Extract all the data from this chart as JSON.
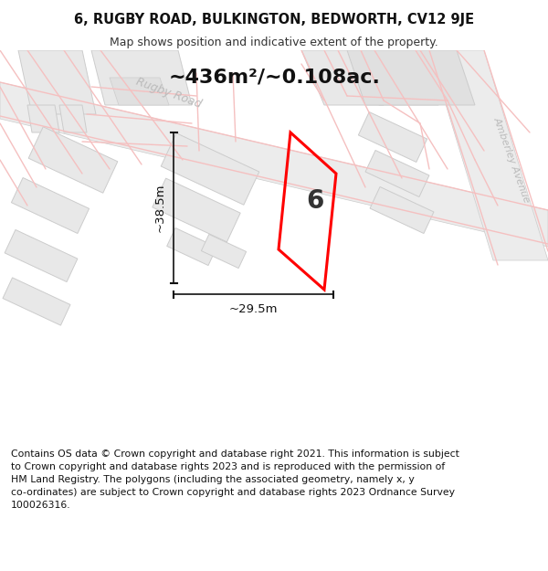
{
  "title_line1": "6, RUGBY ROAD, BULKINGTON, BEDWORTH, CV12 9JE",
  "title_line2": "Map shows position and indicative extent of the property.",
  "area_text": "~436m²/~0.108ac.",
  "dim_height": "~38.5m",
  "dim_width": "~29.5m",
  "property_number": "6",
  "footer_lines": "Contains OS data © Crown copyright and database right 2021. This information is subject\nto Crown copyright and database rights 2023 and is reproduced with the permission of\nHM Land Registry. The polygons (including the associated geometry, namely x, y\nco-ordinates) are subject to Crown copyright and database rights 2023 Ordnance Survey\n100026316.",
  "map_bg": "#ffffff",
  "building_fc": "#e8e8e8",
  "building_ec": "#cccccc",
  "road_strip_fc": "#eeeeee",
  "road_line_color": "#f5c0c0",
  "property_color": "#ff0000",
  "dim_color": "#111111",
  "text_dark": "#111111",
  "road_label_color": "#bbbbbb",
  "title_fontsize": 10.5,
  "subtitle_fontsize": 9,
  "area_fontsize": 16,
  "dim_fontsize": 9.5,
  "number_fontsize": 20,
  "footer_fontsize": 7.8
}
